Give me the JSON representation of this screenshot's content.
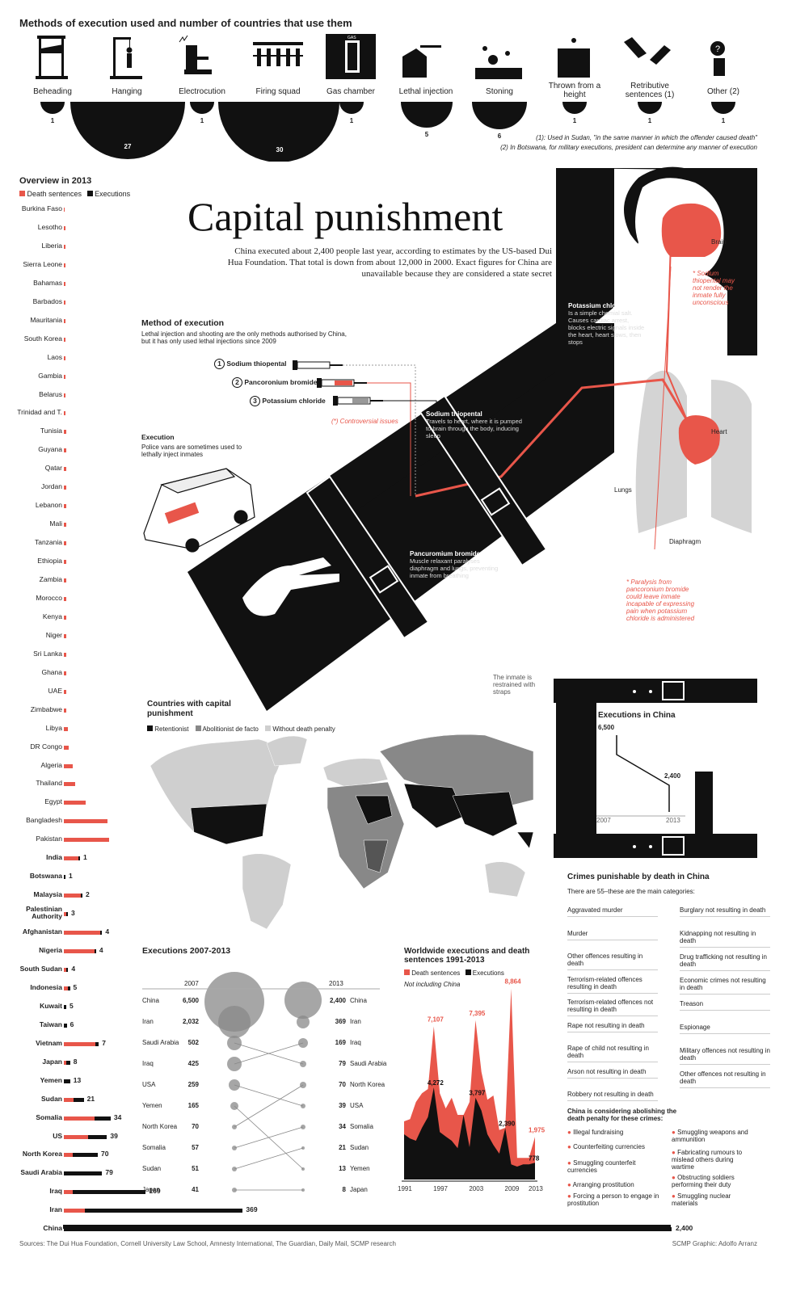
{
  "methods": {
    "title": "Methods of execution used and number of countries that use them",
    "items": [
      {
        "label": "Beheading",
        "count": "1"
      },
      {
        "label": "Hanging",
        "count": "27"
      },
      {
        "label": "Electrocution",
        "count": "1"
      },
      {
        "label": "Firing squad",
        "count": "30"
      },
      {
        "label": "Gas chamber",
        "count": "1"
      },
      {
        "label": "Lethal injection",
        "count": "5"
      },
      {
        "label": "Stoning",
        "count": "6"
      },
      {
        "label": "Thrown from a height",
        "count": "1"
      },
      {
        "label": "Retributive sentences (1)",
        "count": "1"
      },
      {
        "label": "Other (2)",
        "count": "1"
      }
    ],
    "gas_sign": "GAS",
    "note1": "(1): Used in Sudan, \"in the same manner in which the offender caused death\"",
    "note2": "(2) In Botswana, for military executions, president can determine any manner of execution"
  },
  "title": {
    "main": "Capital punishment",
    "intro": "China executed about 2,400 people last year, according to estimates by the US-based Dui Hua Foundation. That total is down from about 12,000 in 2000. Exact figures for China are unavailable because they are considered a state secret"
  },
  "overview": {
    "title": "Overview in 2013",
    "legend_ds": "Death sentences",
    "legend_ex": "Executions",
    "rows": [
      {
        "name": "Burkina Faso",
        "ds": 0.5,
        "ex": 0,
        "label": ""
      },
      {
        "name": "Lesotho",
        "ds": 1,
        "ex": 0,
        "label": ""
      },
      {
        "name": "Liberia",
        "ds": 1,
        "ex": 0,
        "label": ""
      },
      {
        "name": "Sierra Leone",
        "ds": 1,
        "ex": 0,
        "label": ""
      },
      {
        "name": "Bahamas",
        "ds": 1,
        "ex": 0,
        "label": ""
      },
      {
        "name": "Barbados",
        "ds": 1,
        "ex": 0,
        "label": ""
      },
      {
        "name": "Mauritania",
        "ds": 1,
        "ex": 0,
        "label": ""
      },
      {
        "name": "South Korea",
        "ds": 1,
        "ex": 0,
        "label": ""
      },
      {
        "name": "Laos",
        "ds": 1,
        "ex": 0,
        "label": ""
      },
      {
        "name": "Gambia",
        "ds": 1,
        "ex": 0,
        "label": ""
      },
      {
        "name": "Belarus",
        "ds": 1,
        "ex": 0,
        "label": ""
      },
      {
        "name": "Trinidad and T.",
        "ds": 1,
        "ex": 0,
        "label": ""
      },
      {
        "name": "Tunisia",
        "ds": 2,
        "ex": 0,
        "label": ""
      },
      {
        "name": "Guyana",
        "ds": 2,
        "ex": 0,
        "label": ""
      },
      {
        "name": "Qatar",
        "ds": 2,
        "ex": 0,
        "label": ""
      },
      {
        "name": "Jordan",
        "ds": 2,
        "ex": 0,
        "label": ""
      },
      {
        "name": "Lebanon",
        "ds": 2,
        "ex": 0,
        "label": ""
      },
      {
        "name": "Mali",
        "ds": 2,
        "ex": 0,
        "label": ""
      },
      {
        "name": "Tanzania",
        "ds": 2,
        "ex": 0,
        "label": ""
      },
      {
        "name": "Ethiopia",
        "ds": 2,
        "ex": 0,
        "label": ""
      },
      {
        "name": "Zambia",
        "ds": 2,
        "ex": 0,
        "label": ""
      },
      {
        "name": "Morocco",
        "ds": 2,
        "ex": 0,
        "label": ""
      },
      {
        "name": "Kenya",
        "ds": 2,
        "ex": 0,
        "label": ""
      },
      {
        "name": "Niger",
        "ds": 2,
        "ex": 0,
        "label": ""
      },
      {
        "name": "Sri Lanka",
        "ds": 2,
        "ex": 0,
        "label": ""
      },
      {
        "name": "Ghana",
        "ds": 2,
        "ex": 0,
        "label": ""
      },
      {
        "name": "UAE",
        "ds": 2,
        "ex": 0,
        "label": ""
      },
      {
        "name": "Zimbabwe",
        "ds": 2,
        "ex": 0,
        "label": ""
      },
      {
        "name": "Libya",
        "ds": 3,
        "ex": 0,
        "label": ""
      },
      {
        "name": "DR Congo",
        "ds": 4,
        "ex": 0,
        "label": ""
      },
      {
        "name": "Algeria",
        "ds": 7,
        "ex": 0,
        "label": ""
      },
      {
        "name": "Thailand",
        "ds": 9,
        "ex": 0,
        "label": ""
      },
      {
        "name": "Egypt",
        "ds": 18,
        "ex": 0,
        "label": ""
      },
      {
        "name": "Bangladesh",
        "ds": 36,
        "ex": 0,
        "label": ""
      },
      {
        "name": "Pakistan",
        "ds": 37,
        "ex": 0,
        "label": ""
      },
      {
        "name": "India",
        "ds": 12,
        "ex": 1,
        "label": "1",
        "bold": true
      },
      {
        "name": "Botswana",
        "ds": 0,
        "ex": 1,
        "label": "1",
        "bold": true
      },
      {
        "name": "Malaysia",
        "ds": 14,
        "ex": 2,
        "label": "2",
        "bold": true
      },
      {
        "name": "Palestinian Authority",
        "ds": 2,
        "ex": 3,
        "label": "3",
        "bold": true
      },
      {
        "name": "Afghanistan",
        "ds": 30,
        "ex": 4,
        "label": "4",
        "bold": true
      },
      {
        "name": "Nigeria",
        "ds": 25,
        "ex": 4,
        "label": "4",
        "bold": true
      },
      {
        "name": "South Sudan",
        "ds": 2,
        "ex": 4,
        "label": "4",
        "bold": true
      },
      {
        "name": "Indonesia",
        "ds": 3,
        "ex": 5,
        "label": "5",
        "bold": true
      },
      {
        "name": "Kuwait",
        "ds": 0,
        "ex": 5,
        "label": "5",
        "bold": true
      },
      {
        "name": "Taiwan",
        "ds": 0,
        "ex": 6,
        "label": "6",
        "bold": true
      },
      {
        "name": "Vietnam",
        "ds": 26,
        "ex": 7,
        "label": "7",
        "bold": true
      },
      {
        "name": "Japan",
        "ds": 2,
        "ex": 8,
        "label": "8",
        "bold": true
      },
      {
        "name": "Yemen",
        "ds": 0,
        "ex": 13,
        "label": "13",
        "bold": true
      },
      {
        "name": "Sudan",
        "ds": 8,
        "ex": 21,
        "label": "21",
        "bold": true
      },
      {
        "name": "Somalia",
        "ds": 25,
        "ex": 34,
        "label": "34",
        "bold": true
      },
      {
        "name": "US",
        "ds": 20,
        "ex": 39,
        "label": "39",
        "bold": true
      },
      {
        "name": "North Korea",
        "ds": 10,
        "ex": 70,
        "label": "70",
        "bold": true
      },
      {
        "name": "Saudi Arabia",
        "ds": 0,
        "ex": 79,
        "label": "79",
        "bold": true
      },
      {
        "name": "Iraq",
        "ds": 10,
        "ex": 169,
        "label": "169",
        "bold": true
      },
      {
        "name": "Iran",
        "ds": 25,
        "ex": 369,
        "label": "369",
        "bold": true
      },
      {
        "name": "China",
        "ds": 0,
        "ex": 2400,
        "label": "2,400",
        "bold": true
      }
    ]
  },
  "method_exec": {
    "title": "Method of execution",
    "subtitle": "Lethal injection and shooting are the only methods authorised by China, but it has only used lethal injections since 2009",
    "drugs": [
      {
        "num": "1",
        "name": "Sodium thiopental"
      },
      {
        "num": "2",
        "name": "Pancoronium bromide"
      },
      {
        "num": "3",
        "name": "Potassium chloride"
      }
    ],
    "controversial": "(*) Controversial issues"
  },
  "execution": {
    "title": "Execution",
    "text": "Police vans are sometimes used to lethally inject inmates"
  },
  "body": {
    "step1_title": "Sodium thiopental",
    "step1_text": "Travels to heart, where it is pumped to brain through the body, inducing sleep",
    "step2_title": "Pancuromium bromide",
    "step2_text": "Muscle relaxant paralyses diaphragm and lungs, preventing inmate from breathing",
    "step3_title": "Potassium chloride",
    "step3_text": "Is a simple chemial salt. Causes cardiac arrest, blocks electric signals inside the heart, heart slows, then stops",
    "brain": "Brain",
    "heart": "Heart",
    "lungs": "Lungs",
    "diaphragm": "Diaphragm",
    "note_sodium": "* Sodium thiopental may not render the inmate fully unconscious",
    "note_paralysis": "* Paralysis from pancoronium bromide could leave inmate incapable of expressing pain when potassium chloride is administered",
    "strap_note": "The inmate is restrained with straps"
  },
  "china_exec": {
    "title": "Executions in China",
    "v1": "6,500",
    "v2": "2,400",
    "y1": "2007",
    "y2": "2013"
  },
  "map": {
    "title": "Countries with capital punishment",
    "legend": [
      "Retentionist",
      "Abolitionist de facto",
      "Without death penalty"
    ]
  },
  "crimes": {
    "title": "Crimes punishable by death in China",
    "subtitle": "There are 55–these are the main categories:",
    "left": [
      "Aggravated murder",
      "Murder",
      "Other offences resulting in death",
      "Terrorism-related offences resulting in death",
      "Terrorism-related offences not resulting in death",
      "Rape not resulting in death",
      "Rape of child not resulting in death",
      "Arson not resulting in death",
      "Robbery not resulting in death"
    ],
    "right": [
      "Burglary not resulting in death",
      "Kidnapping not resulting in death",
      "Drug trafficking not resulting in death",
      "Economic crimes not resulting in death",
      "Treason",
      "Espionage",
      "Military offences not resulting in death",
      "Other offences not resulting in death"
    ],
    "considering": "China is considering abolishing the death penalty for these crimes:",
    "cons_left": [
      "Illegal fundraising",
      "Counterfeiting currencies",
      "Smuggling counterfeit currencies",
      "Arranging prostitution",
      "Forcing a person to engage in prostitution"
    ],
    "cons_right": [
      "Smuggling weapons and ammunition",
      "Fabricating rumours to mislead others during wartime",
      "Obstructing soldiers performing their duty",
      "Smuggling nuclear materials"
    ]
  },
  "exec0713": {
    "title": "Executions 2007-2013",
    "y1": "2007",
    "y2": "2013",
    "left": [
      {
        "name": "China",
        "v": "6,500"
      },
      {
        "name": "Iran",
        "v": "2,032"
      },
      {
        "name": "Saudi Arabia",
        "v": "502"
      },
      {
        "name": "Iraq",
        "v": "425"
      },
      {
        "name": "USA",
        "v": "259"
      },
      {
        "name": "Yemen",
        "v": "165"
      },
      {
        "name": "North Korea",
        "v": "70"
      },
      {
        "name": "Somalia",
        "v": "57"
      },
      {
        "name": "Sudan",
        "v": "51"
      },
      {
        "name": "Japan",
        "v": "41"
      }
    ],
    "right": [
      {
        "name": "China",
        "v": "2,400"
      },
      {
        "name": "Iran",
        "v": "369"
      },
      {
        "name": "Iraq",
        "v": "169"
      },
      {
        "name": "Saudi Arabia",
        "v": "79"
      },
      {
        "name": "North Korea",
        "v": "70"
      },
      {
        "name": "USA",
        "v": "39"
      },
      {
        "name": "Somalia",
        "v": "34"
      },
      {
        "name": "Sudan",
        "v": "21"
      },
      {
        "name": "Yemen",
        "v": "13"
      },
      {
        "name": "Japan",
        "v": "8"
      }
    ]
  },
  "worldwide": {
    "title": "Worldwide executions and death sentences 1991-2013",
    "legend_ds": "Death sentences",
    "legend_ex": "Executions",
    "note": "Not including China",
    "labels": [
      "7,107",
      "4,272",
      "7,395",
      "3,797",
      "8,864",
      "2,390",
      "1,975",
      "778"
    ],
    "xticks": [
      "1991",
      "1997",
      "2003",
      "2009",
      "2013"
    ]
  },
  "footer": {
    "sources": "Sources: The Dui Hua Foundation, Cornell University Law School, Amnesty International, The Guardian, Daily Mail, SCMP research",
    "credit": "SCMP Graphic: Adolfo Arranz"
  },
  "colors": {
    "red": "#e8564a",
    "black": "#111111",
    "grey": "#888888",
    "light": "#cccccc"
  },
  "chart_data": {
    "type": "area",
    "x": [
      1991,
      1992,
      1993,
      1994,
      1995,
      1996,
      1997,
      1998,
      1999,
      2000,
      2001,
      2002,
      2003,
      2004,
      2005,
      2006,
      2007,
      2008,
      2009,
      2010,
      2011,
      2012,
      2013
    ],
    "series": [
      {
        "name": "Death sentences",
        "values": [
          2700,
          2800,
          3600,
          4000,
          4200,
          7107,
          4000,
          3300,
          3800,
          3000,
          3000,
          3600,
          7395,
          5000,
          3700,
          3900,
          2300,
          2400,
          8864,
          1000,
          1000,
          1000,
          1975
        ]
      },
      {
        "name": "Executions",
        "values": [
          2100,
          1900,
          1800,
          2400,
          2900,
          4272,
          2200,
          2000,
          1800,
          1450,
          3000,
          1500,
          3797,
          3200,
          2100,
          1600,
          1200,
          2390,
          700,
          600,
          700,
          700,
          778
        ]
      }
    ]
  }
}
